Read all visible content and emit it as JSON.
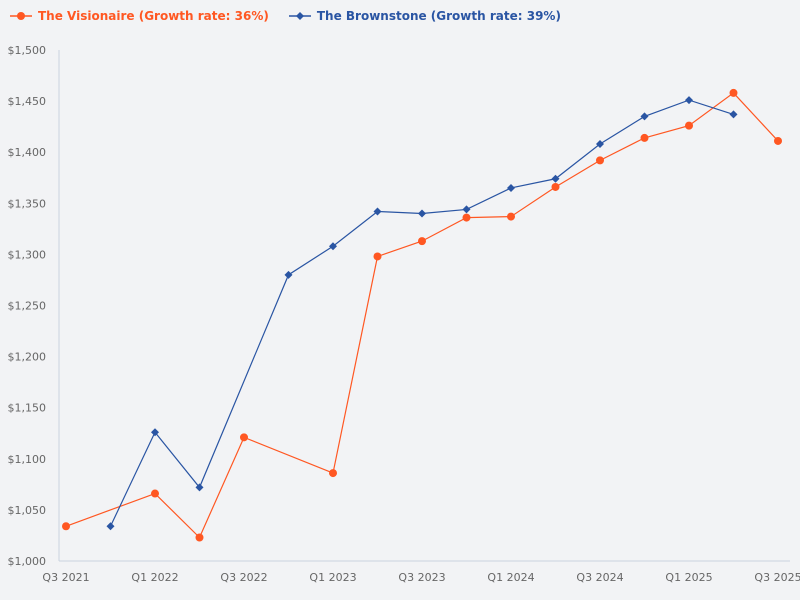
{
  "chart_data": {
    "type": "line",
    "categories": [
      "Q3 2021",
      "Q4 2021",
      "Q1 2022",
      "Q2 2022",
      "Q3 2022",
      "Q4 2022",
      "Q1 2023",
      "Q2 2023",
      "Q3 2023",
      "Q4 2023",
      "Q1 2024",
      "Q2 2024",
      "Q3 2024",
      "Q4 2024",
      "Q1 2025",
      "Q2 2025",
      "Q3 2025"
    ],
    "x_tick_labels": [
      "Q3 2021",
      "Q1 2022",
      "Q3 2022",
      "Q1 2023",
      "Q3 2023",
      "Q1 2024",
      "Q3 2024",
      "Q1 2025",
      "Q3 2025"
    ],
    "y_tick_labels": [
      "$1,000",
      "$1,050",
      "$1,100",
      "$1,150",
      "$1,200",
      "$1,250",
      "$1,300",
      "$1,350",
      "$1,400",
      "$1,450",
      "$1,500"
    ],
    "ylim": [
      1000,
      1500
    ],
    "grid": false,
    "legend_position": "top-left",
    "series": [
      {
        "name": "The Visionaire (Growth rate: 36%)",
        "color": "#ff5722",
        "marker": "circle",
        "values": [
          1034,
          null,
          1066,
          1023,
          1121,
          null,
          1086,
          1298,
          1313,
          1336,
          1337,
          1366,
          1392,
          1414,
          1426,
          1458,
          1411
        ]
      },
      {
        "name": "The Brownstone (Growth rate: 39%)",
        "color": "#2a55a3",
        "marker": "diamond",
        "values": [
          null,
          1034,
          1126,
          1072,
          null,
          1280,
          1308,
          1342,
          1340,
          1344,
          1365,
          1374,
          1408,
          1435,
          1451,
          1437,
          null
        ]
      }
    ]
  }
}
